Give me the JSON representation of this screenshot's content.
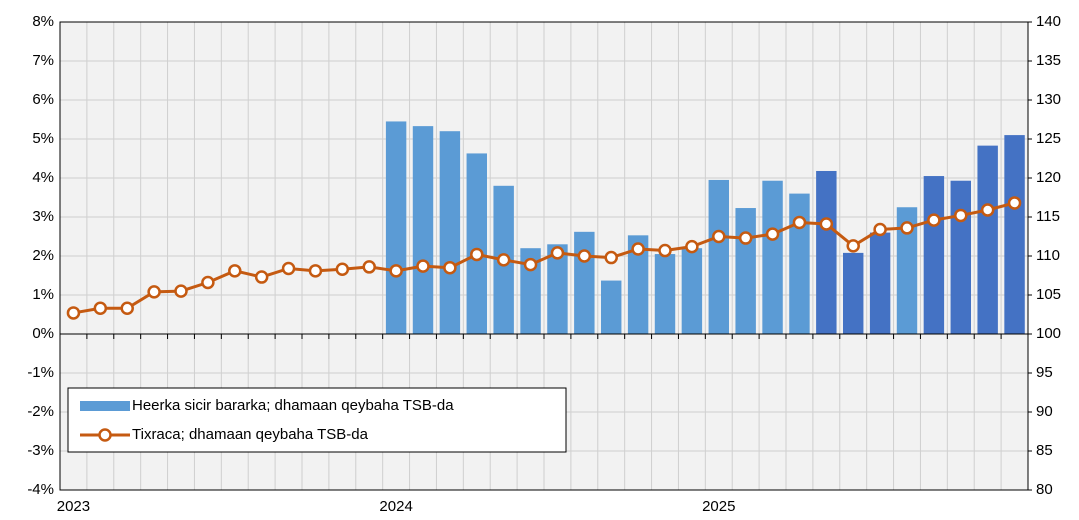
{
  "chart_data": {
    "type": "bar-line",
    "categories": [
      "2023",
      null,
      null,
      null,
      null,
      null,
      null,
      null,
      null,
      null,
      null,
      null,
      "2024",
      null,
      null,
      null,
      null,
      null,
      null,
      null,
      null,
      null,
      null,
      null,
      "2025",
      null,
      null,
      null,
      null,
      null,
      null,
      null,
      null,
      null,
      null,
      null
    ],
    "series": [
      {
        "name": "Heerka sicir bararka; dhamaan qeybaha TSB-da",
        "type": "bar",
        "color": "#5b9bd5",
        "colors": [
          null,
          null,
          null,
          null,
          null,
          null,
          null,
          null,
          null,
          null,
          null,
          null,
          "#5b9bd5",
          "#5b9bd5",
          "#5b9bd5",
          "#5b9bd5",
          "#5b9bd5",
          "#5b9bd5",
          "#5b9bd5",
          "#5b9bd5",
          "#5b9bd5",
          "#5b9bd5",
          "#5b9bd5",
          "#5b9bd5",
          "#5b9bd5",
          "#5b9bd5",
          "#5b9bd5",
          "#5b9bd5",
          "#4472c4",
          "#4472c4",
          "#4472c4",
          "#5b9bd5",
          "#4472c4",
          "#4472c4",
          "#4472c4",
          "#4472c4"
        ],
        "values": [
          null,
          null,
          null,
          null,
          null,
          null,
          null,
          null,
          null,
          null,
          null,
          null,
          5.45,
          5.33,
          5.2,
          4.63,
          3.8,
          2.2,
          2.3,
          2.62,
          1.37,
          2.53,
          2.05,
          2.2,
          3.95,
          3.23,
          3.93,
          3.6,
          4.18,
          2.08,
          2.6,
          3.25,
          4.05,
          3.93,
          4.83,
          5.1
        ]
      },
      {
        "name": "Tixraca; dhamaan qeybaha TSB-da",
        "type": "line",
        "axis": "y2",
        "color": "#c55a11",
        "values": [
          102.7,
          103.3,
          103.3,
          105.4,
          105.5,
          106.6,
          108.1,
          107.3,
          108.4,
          108.1,
          108.3,
          108.6,
          108.1,
          108.7,
          108.5,
          110.2,
          109.5,
          108.9,
          110.4,
          110.0,
          109.8,
          110.9,
          110.7,
          111.2,
          112.5,
          112.3,
          112.8,
          114.3,
          114.1,
          111.3,
          113.4,
          113.6,
          114.6,
          115.2,
          115.9,
          116.8
        ]
      }
    ],
    "ylim": [
      -4,
      8
    ],
    "yticks": [
      {
        "value": -4,
        "label": "-4%"
      },
      {
        "value": -3,
        "label": "-3%"
      },
      {
        "value": -2,
        "label": "-2%"
      },
      {
        "value": -1,
        "label": "-1%"
      },
      {
        "value": 0,
        "label": "0%"
      },
      {
        "value": 1,
        "label": "1%"
      },
      {
        "value": 2,
        "label": "2%"
      },
      {
        "value": 3,
        "label": "3%"
      },
      {
        "value": 4,
        "label": "4%"
      },
      {
        "value": 5,
        "label": "5%"
      },
      {
        "value": 6,
        "label": "6%"
      },
      {
        "value": 7,
        "label": "7%"
      },
      {
        "value": 8,
        "label": "8%"
      }
    ],
    "y2lim": [
      80,
      140
    ],
    "y2ticks": [
      80,
      85,
      90,
      95,
      100,
      105,
      110,
      115,
      120,
      125,
      130,
      135,
      140
    ],
    "grid": true,
    "legend": "lower left"
  }
}
